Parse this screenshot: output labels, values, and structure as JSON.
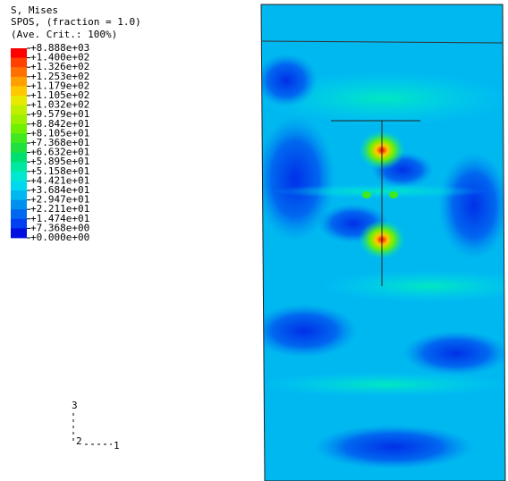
{
  "legend": {
    "title_lines": [
      "S, Mises",
      "SPOS, (fraction = 1.0)",
      "(Ave. Crit.: 100%)"
    ],
    "labels": [
      "+8.888e+03",
      "+1.400e+02",
      "+1.326e+02",
      "+1.253e+02",
      "+1.179e+02",
      "+1.105e+02",
      "+1.032e+02",
      "+9.579e+01",
      "+8.842e+01",
      "+8.105e+01",
      "+7.368e+01",
      "+6.632e+01",
      "+5.895e+01",
      "+5.158e+01",
      "+4.421e+01",
      "+3.684e+01",
      "+2.947e+01",
      "+2.211e+01",
      "+1.474e+01",
      "+7.368e+00",
      "+0.000e+00"
    ],
    "colors": [
      "#ff0000",
      "#ff4000",
      "#ff7000",
      "#ffa000",
      "#ffc800",
      "#e8e800",
      "#c0f000",
      "#9cf000",
      "#70f000",
      "#40e820",
      "#20e040",
      "#00e070",
      "#00e8a0",
      "#00e8d0",
      "#00d8f0",
      "#00b8f0",
      "#0090f0",
      "#0068f0",
      "#0040f0",
      "#0010e0"
    ]
  },
  "triad": {
    "axis_3": "3",
    "axis_2": "2",
    "axis_1": "1"
  }
}
